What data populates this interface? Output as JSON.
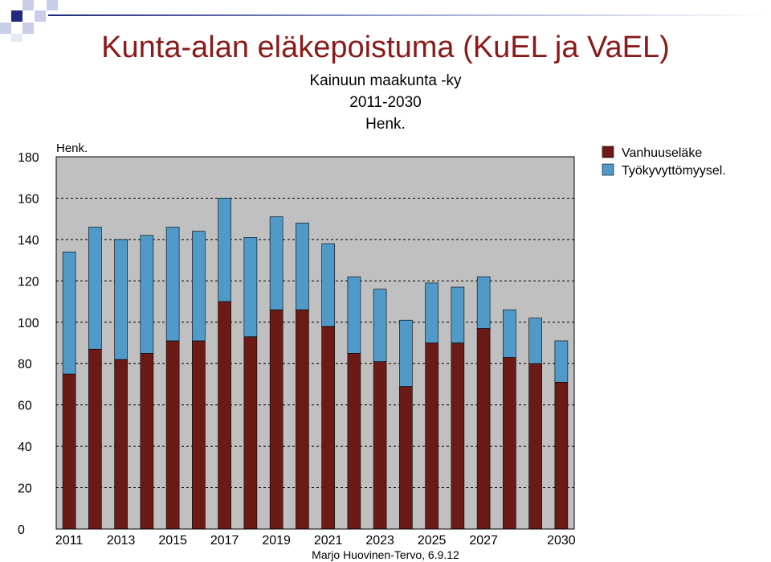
{
  "slide": {
    "title": "Kunta-alan eläkepoistuma (KuEL ja VaEL)",
    "subtitle_lines": [
      "Kainuun maakunta -ky",
      "2011-2030",
      "Henk."
    ],
    "footer": "Marjo Huovinen-Tervo, 6.9.12",
    "title_color": "#8b1a1a"
  },
  "chart_data": {
    "type": "bar",
    "stacked": true,
    "unit_label": "Henk.",
    "categories": [
      "2011",
      "2012",
      "2013",
      "2014",
      "2015",
      "2016",
      "2017",
      "2018",
      "2019",
      "2020",
      "2021",
      "2022",
      "2023",
      "2024",
      "2025",
      "2026",
      "2027",
      "2028",
      "2029",
      "2030"
    ],
    "x_tick_labels": [
      "2011",
      "",
      "2013",
      "",
      "2015",
      "",
      "2017",
      "",
      "2019",
      "",
      "2021",
      "",
      "2023",
      "",
      "2025",
      "",
      "2027",
      "",
      "",
      "2030"
    ],
    "series": [
      {
        "name": "Vanhuuseläke",
        "color": "#6b1a15",
        "values": [
          75,
          87,
          82,
          85,
          91,
          91,
          110,
          93,
          106,
          106,
          98,
          85,
          81,
          69,
          90,
          90,
          97,
          83,
          80,
          71
        ]
      },
      {
        "name": "Työkyvyttömyysel.",
        "color": "#4f9ac8",
        "values": [
          59,
          59,
          58,
          57,
          55,
          53,
          50,
          48,
          45,
          42,
          40,
          37,
          35,
          32,
          29,
          27,
          25,
          23,
          22,
          20
        ]
      }
    ],
    "ylim": [
      0,
      180
    ],
    "yticks": [
      0,
      20,
      40,
      60,
      80,
      100,
      120,
      140,
      160,
      180
    ],
    "grid": true,
    "grid_style": "dashed",
    "plot_background": "#c0c0c0",
    "legend_position": "right"
  }
}
